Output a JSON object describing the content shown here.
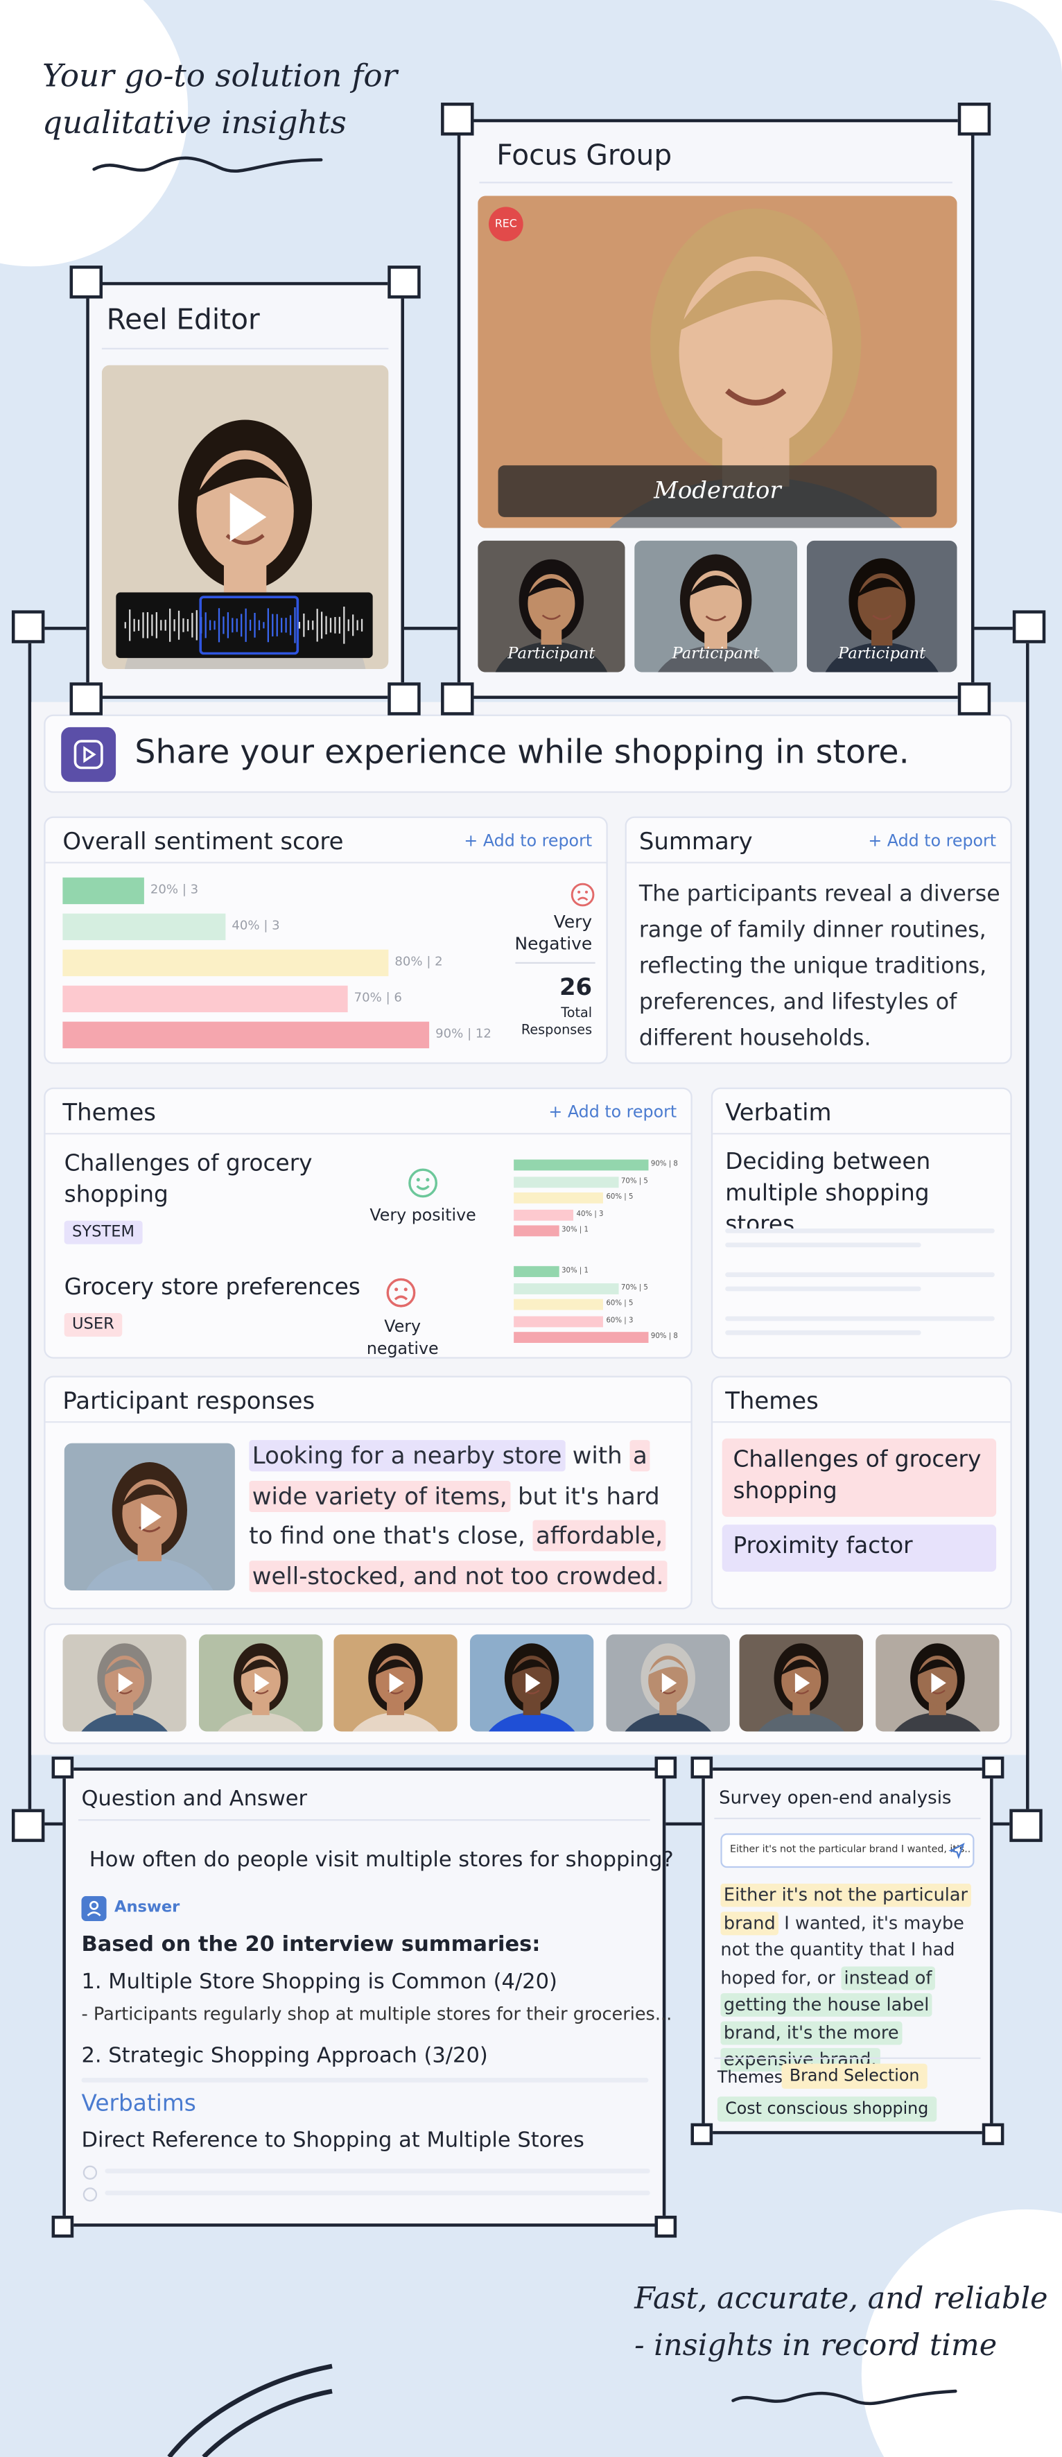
{
  "hero": {
    "line1": "Your go-to solution for",
    "line2": "qualitative insights"
  },
  "reel_editor": {
    "title": "Reel Editor"
  },
  "focus_group": {
    "title": "Focus Group",
    "badge": "REC",
    "moderator": "Moderator",
    "participants": [
      "Participant",
      "Participant",
      "Participant"
    ]
  },
  "question": {
    "title": "Share your experience while shopping in store."
  },
  "sentiment": {
    "title": "Overall sentiment score",
    "action": "+ Add to report",
    "bars": [
      {
        "value": 20,
        "label": "20% | 3",
        "color": "#93d6ad"
      },
      {
        "value": 40,
        "label": "40% | 3",
        "color": "#d5eee0"
      },
      {
        "value": 80,
        "label": "80% | 2",
        "color": "#fbf0c6"
      },
      {
        "value": 70,
        "label": "70% | 6",
        "color": "#fdc9cf"
      },
      {
        "value": 90,
        "label": "90% | 12",
        "color": "#f5a6ae"
      }
    ],
    "mood": "Very Negative",
    "total": 26,
    "total_label": "Total Responses"
  },
  "summary": {
    "title": "Summary",
    "action": "+ Add to report",
    "text": "The participants reveal a diverse range of family dinner routines, reflecting the unique traditions, preferences, and lifestyles of different households."
  },
  "themes": {
    "title": "Themes",
    "action": "+ Add to report",
    "items": [
      {
        "name": "Challenges of grocery shopping",
        "tag": "SYSTEM",
        "tag_color": "#e7e2fb",
        "mood": "Very positive",
        "mood_color": "#6cc79a",
        "bars": [
          {
            "value": 90,
            "label": "90% | 8",
            "color": "#93d6ad"
          },
          {
            "value": 70,
            "label": "70% | 5",
            "color": "#d5eee0"
          },
          {
            "value": 60,
            "label": "60% | 5",
            "color": "#fbf0c6"
          },
          {
            "value": 40,
            "label": "40% | 3",
            "color": "#fdc9cf"
          },
          {
            "value": 30,
            "label": "30% | 1",
            "color": "#f5a6ae"
          }
        ]
      },
      {
        "name": "Grocery store preferences",
        "tag": "USER",
        "tag_color": "#fde0e3",
        "mood": "Very negative",
        "mood_color": "#e26a6a",
        "bars": [
          {
            "value": 30,
            "label": "30% | 1",
            "color": "#93d6ad"
          },
          {
            "value": 70,
            "label": "70% | 5",
            "color": "#d5eee0"
          },
          {
            "value": 60,
            "label": "60% | 5",
            "color": "#fbf0c6"
          },
          {
            "value": 60,
            "label": "60% | 3",
            "color": "#fdc9cf"
          },
          {
            "value": 90,
            "label": "90% | 8",
            "color": "#f5a6ae"
          }
        ]
      }
    ]
  },
  "verbatim": {
    "title": "Verbatim",
    "text": "Deciding between multiple shopping stores"
  },
  "participant_responses": {
    "title": "Participant responses",
    "segments": [
      {
        "text": "Looking for a nearby store",
        "highlight": "#e7e2fb"
      },
      {
        "text": " with "
      },
      {
        "text": "a wide variety of items,",
        "highlight": "#fde0e3"
      },
      {
        "text": " but it's hard to find one that's close, "
      },
      {
        "text": "affordable, well-stocked, and not too crowded.",
        "highlight": "#fde0e3"
      }
    ]
  },
  "themes_side": {
    "title": "Themes",
    "items": [
      {
        "text": "Challenges of grocery shopping",
        "color": "#fde0e3"
      },
      {
        "text": "Proximity factor",
        "color": "#e7e2fb"
      }
    ]
  },
  "qa": {
    "title": "Question and Answer",
    "question": "How often do people visit multiple stores for shopping?",
    "answer_label": "Answer",
    "heading": "Based on the 20 interview summaries:",
    "point1": "1. Multiple Store Shopping is Common (4/20)",
    "detail1": "- Participants regularly shop at multiple stores for their groceries...",
    "point2": "2. Strategic Shopping Approach (3/20)",
    "verbatims_title": "Verbatims",
    "verbatim": "Direct Reference to Shopping at Multiple Stores"
  },
  "survey": {
    "title": "Survey open-end analysis",
    "input": "Either it's not the particular brand I wanted, it's..",
    "segments": [
      {
        "text": "Either it's not the particular brand",
        "highlight": "#fcefc7"
      },
      {
        "text": " I wanted, it's maybe not the quantity that I had hoped for, or "
      },
      {
        "text": "instead of getting the house label brand, it's the more expensive brand.",
        "highlight": "#d7efdf"
      }
    ],
    "themes_label": "Themes",
    "themes": [
      {
        "text": "Brand Selection",
        "color": "#fcefc7"
      },
      {
        "text": "Cost conscious shopping",
        "color": "#d7efdf"
      }
    ]
  },
  "tagline": {
    "line1": "Fast, accurate, and reliable",
    "line2": "- insights in record time"
  }
}
